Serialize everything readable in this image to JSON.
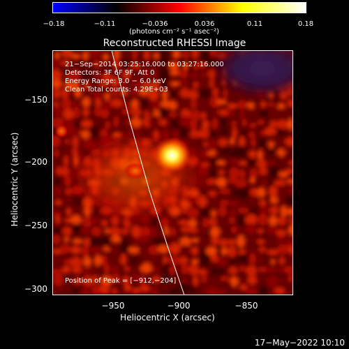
{
  "colorbar": {
    "ticks": [
      "−0.18",
      "−0.11",
      "−0.036",
      "0.036",
      "0.11",
      "0.18"
    ],
    "units": "(photons cm⁻² s⁻¹ asec⁻²)",
    "colors": [
      "#0000ff",
      "#000000",
      "#ff0000",
      "#ffff00",
      "#ffffff"
    ]
  },
  "info": {
    "time_range": "21−Sep−2014 03:25:16.000 to 03:27:16.000",
    "detectors": "Detectors: 3F 6F 9F, Att 0",
    "energy": "Energy Range: 3.0 − 6.0 keV",
    "method": "Clean    Total counts: 4.29E+03",
    "peak": "Position of Peak = [−912,−204]"
  },
  "footer": "17−May−2022 10:10",
  "chart_data": {
    "type": "heatmap",
    "title": "Reconstructed RHESSI Image",
    "xlabel": "Heliocentric X (arcsec)",
    "ylabel": "Heliocentric Y (arcsec)",
    "x_ticks": [
      "−950",
      "−900",
      "−850"
    ],
    "y_ticks": [
      "−150",
      "−200",
      "−250",
      "−300"
    ],
    "xlim": [
      -997,
      -825
    ],
    "ylim": [
      -305,
      -129
    ],
    "colorbar_range": [
      -0.18,
      0.18
    ],
    "peak": {
      "x": -912,
      "y": -204
    },
    "limb_curve": [
      {
        "x": -955,
        "y": -129
      },
      {
        "x": -942,
        "y": -180
      },
      {
        "x": -928,
        "y": -230
      },
      {
        "x": -915,
        "y": -270
      },
      {
        "x": -903,
        "y": -305
      }
    ]
  }
}
